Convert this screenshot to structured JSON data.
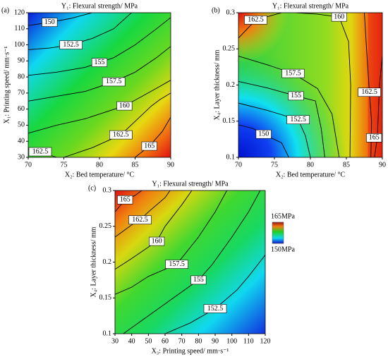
{
  "chart_data": [
    {
      "type": "contour",
      "panel": "(a)",
      "title": "Y₁: Flexural strength/ MPa",
      "xlabel": "X₂: Bed temperature/ °C",
      "ylabel": "X₁: Printing speed/ mm·s⁻¹",
      "xlim": [
        70,
        90
      ],
      "ylim": [
        30,
        120
      ],
      "xticks": [
        70,
        75,
        80,
        85,
        90
      ],
      "yticks": [
        30,
        40,
        50,
        60,
        70,
        80,
        90,
        100,
        110,
        120
      ],
      "contours": [
        {
          "level": 150,
          "x": [
            70,
            73,
            76,
            79
          ],
          "y": [
            112,
            114,
            116.5,
            120
          ]
        },
        {
          "level": 152.5,
          "x": [
            70,
            73,
            76,
            79,
            82,
            84.5
          ],
          "y": [
            97,
            98,
            100,
            104,
            110,
            120
          ]
        },
        {
          "level": 155,
          "x": [
            70,
            74,
            78,
            80,
            82,
            85,
            88,
            90
          ],
          "y": [
            81,
            83,
            86,
            89,
            92,
            100,
            110,
            117
          ]
        },
        {
          "level": 157.5,
          "x": [
            70,
            74,
            78,
            82,
            85,
            88,
            90
          ],
          "y": [
            65,
            68,
            71,
            77,
            83,
            92,
            99
          ]
        },
        {
          "level": 160,
          "x": [
            70,
            74,
            78,
            83.5,
            86,
            88,
            90
          ],
          "y": [
            45,
            50,
            54,
            62,
            68,
            73,
            78
          ]
        },
        {
          "level": 162.5,
          "x": [
            75,
            79,
            83,
            87.3,
            88.5,
            90
          ],
          "y": [
            30,
            36,
            44,
            62,
            66,
            70
          ]
        },
        {
          "level": 165,
          "x": [
            85,
            87,
            88.8,
            90
          ],
          "y": [
            30,
            37,
            46,
            55
          ]
        },
        {
          "level": 162.5,
          "x": [
            70,
            71.5,
            74
          ],
          "y": [
            35,
            33.5,
            30
          ]
        }
      ]
    },
    {
      "type": "contour",
      "panel": "(b)",
      "title": "Y₁: Flexural strength/ MPa",
      "xlabel": "X₂: Bed temperature/ °C",
      "ylabel": "X₄: Layer thickness/ mm",
      "xlim": [
        70,
        90
      ],
      "ylim": [
        0.1,
        0.3
      ],
      "xticks": [
        70,
        75,
        80,
        85,
        90
      ],
      "yticks": [
        0.1,
        0.15,
        0.2,
        0.25,
        0.3
      ],
      "contours": [
        {
          "level": 162.5,
          "x": [
            70,
            72.4,
            76
          ],
          "y": [
            0.265,
            0.29,
            0.3
          ]
        },
        {
          "level": 160,
          "x": [
            78,
            81,
            84,
            85.3,
            85.6,
            85.5
          ],
          "y": [
            0.3,
            0.298,
            0.294,
            0.26,
            0.2,
            0.1
          ]
        },
        {
          "level": 157.5,
          "x": [
            70,
            74,
            77.6,
            81,
            83,
            84
          ],
          "y": [
            0.24,
            0.228,
            0.216,
            0.195,
            0.16,
            0.1
          ]
        },
        {
          "level": 155,
          "x": [
            70,
            74,
            78,
            80.7,
            81.5,
            82
          ],
          "y": [
            0.205,
            0.196,
            0.185,
            0.178,
            0.14,
            0.1
          ]
        },
        {
          "level": 152.5,
          "x": [
            70,
            74,
            78.3,
            79.3,
            80
          ],
          "y": [
            0.175,
            0.165,
            0.152,
            0.13,
            0.1
          ]
        },
        {
          "level": 150,
          "x": [
            70,
            72,
            73.5,
            76,
            77
          ],
          "y": [
            0.145,
            0.14,
            0.132,
            0.12,
            0.1
          ]
        },
        {
          "level": 162.5,
          "x": [
            87.5,
            87.8,
            88.2,
            88.5,
            88.4
          ],
          "y": [
            0.3,
            0.25,
            0.19,
            0.15,
            0.1
          ]
        },
        {
          "level": 165,
          "x": [
            88.9,
            89.3,
            89.6,
            90
          ],
          "y": [
            0.1,
            0.127,
            0.2,
            0.24
          ]
        }
      ]
    },
    {
      "type": "contour",
      "panel": "(c)",
      "title": "Y₁: Flexural strength/ MPa",
      "xlabel": "X₃: Printing speed/ mm·s⁻¹",
      "ylabel": "X₄: Layer thickness/ mm",
      "xlim": [
        30,
        120
      ],
      "ylim": [
        0.1,
        0.3
      ],
      "xticks": [
        30,
        40,
        50,
        60,
        70,
        80,
        90,
        100,
        110,
        120
      ],
      "yticks": [
        0.1,
        0.15,
        0.2,
        0.25,
        0.3
      ],
      "contours": [
        {
          "level": 165,
          "x": [
            30,
            36,
            42,
            46
          ],
          "y": [
            0.27,
            0.287,
            0.293,
            0.3
          ]
        },
        {
          "level": 162.5,
          "x": [
            30,
            40,
            45,
            50,
            60,
            63
          ],
          "y": [
            0.235,
            0.252,
            0.259,
            0.27,
            0.29,
            0.3
          ]
        },
        {
          "level": 160,
          "x": [
            30,
            40,
            55,
            60,
            70,
            76
          ],
          "y": [
            0.19,
            0.205,
            0.229,
            0.25,
            0.28,
            0.3
          ]
        },
        {
          "level": 157.5,
          "x": [
            30,
            40,
            50,
            67,
            80,
            90,
            97
          ],
          "y": [
            0.155,
            0.165,
            0.18,
            0.197,
            0.235,
            0.27,
            0.3
          ]
        },
        {
          "level": 155,
          "x": [
            35,
            50,
            65,
            80,
            88,
            100,
            110,
            117
          ],
          "y": [
            0.1,
            0.125,
            0.15,
            0.175,
            0.196,
            0.235,
            0.27,
            0.3
          ]
        },
        {
          "level": 152.5,
          "x": [
            60,
            75,
            90,
            103,
            110,
            120
          ],
          "y": [
            0.1,
            0.115,
            0.135,
            0.161,
            0.18,
            0.21
          ]
        }
      ],
      "colorbar": {
        "max": {
          "value": 165,
          "label": "165MPa"
        },
        "min": {
          "value": 150,
          "label": "150MPa"
        }
      }
    }
  ]
}
